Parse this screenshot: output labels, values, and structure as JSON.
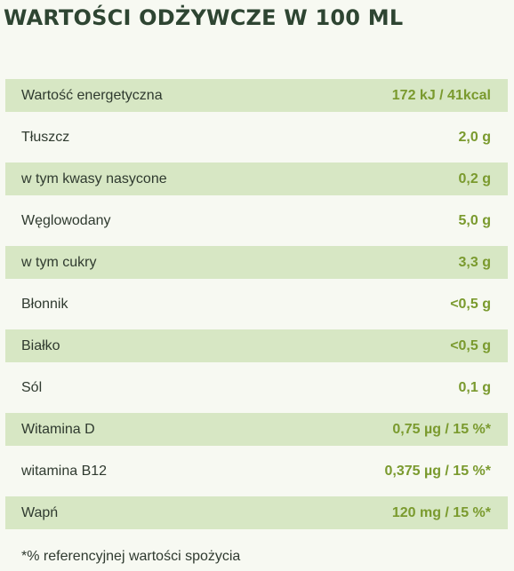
{
  "title": "WARTOŚCI ODŻYWCZE W 100 ML",
  "rows": [
    {
      "label": "Wartość energetyczna",
      "value": "172 kJ / 41kcal"
    },
    {
      "label": "Tłuszcz",
      "value": "2,0 g"
    },
    {
      "label": "w tym kwasy nasycone",
      "value": "0,2 g"
    },
    {
      "label": "Węglowodany",
      "value": "5,0 g"
    },
    {
      "label": "w tym cukry",
      "value": "3,3 g"
    },
    {
      "label": "Błonnik",
      "value": "<0,5 g"
    },
    {
      "label": "Białko",
      "value": "<0,5 g"
    },
    {
      "label": "Sól",
      "value": "0,1 g"
    },
    {
      "label": "Witamina D",
      "value": "0,75 µg / 15 %*"
    },
    {
      "label": "witamina B12",
      "value": "0,375 µg / 15 %*"
    },
    {
      "label": "Wapń",
      "value": "120 mg / 15 %*"
    }
  ],
  "footnote": "*% referencyjnej wartości spożycia",
  "colors": {
    "shaded_row": "#d7e7c4",
    "value_text": "#7a9a2e",
    "title_text": "#2e4532"
  }
}
